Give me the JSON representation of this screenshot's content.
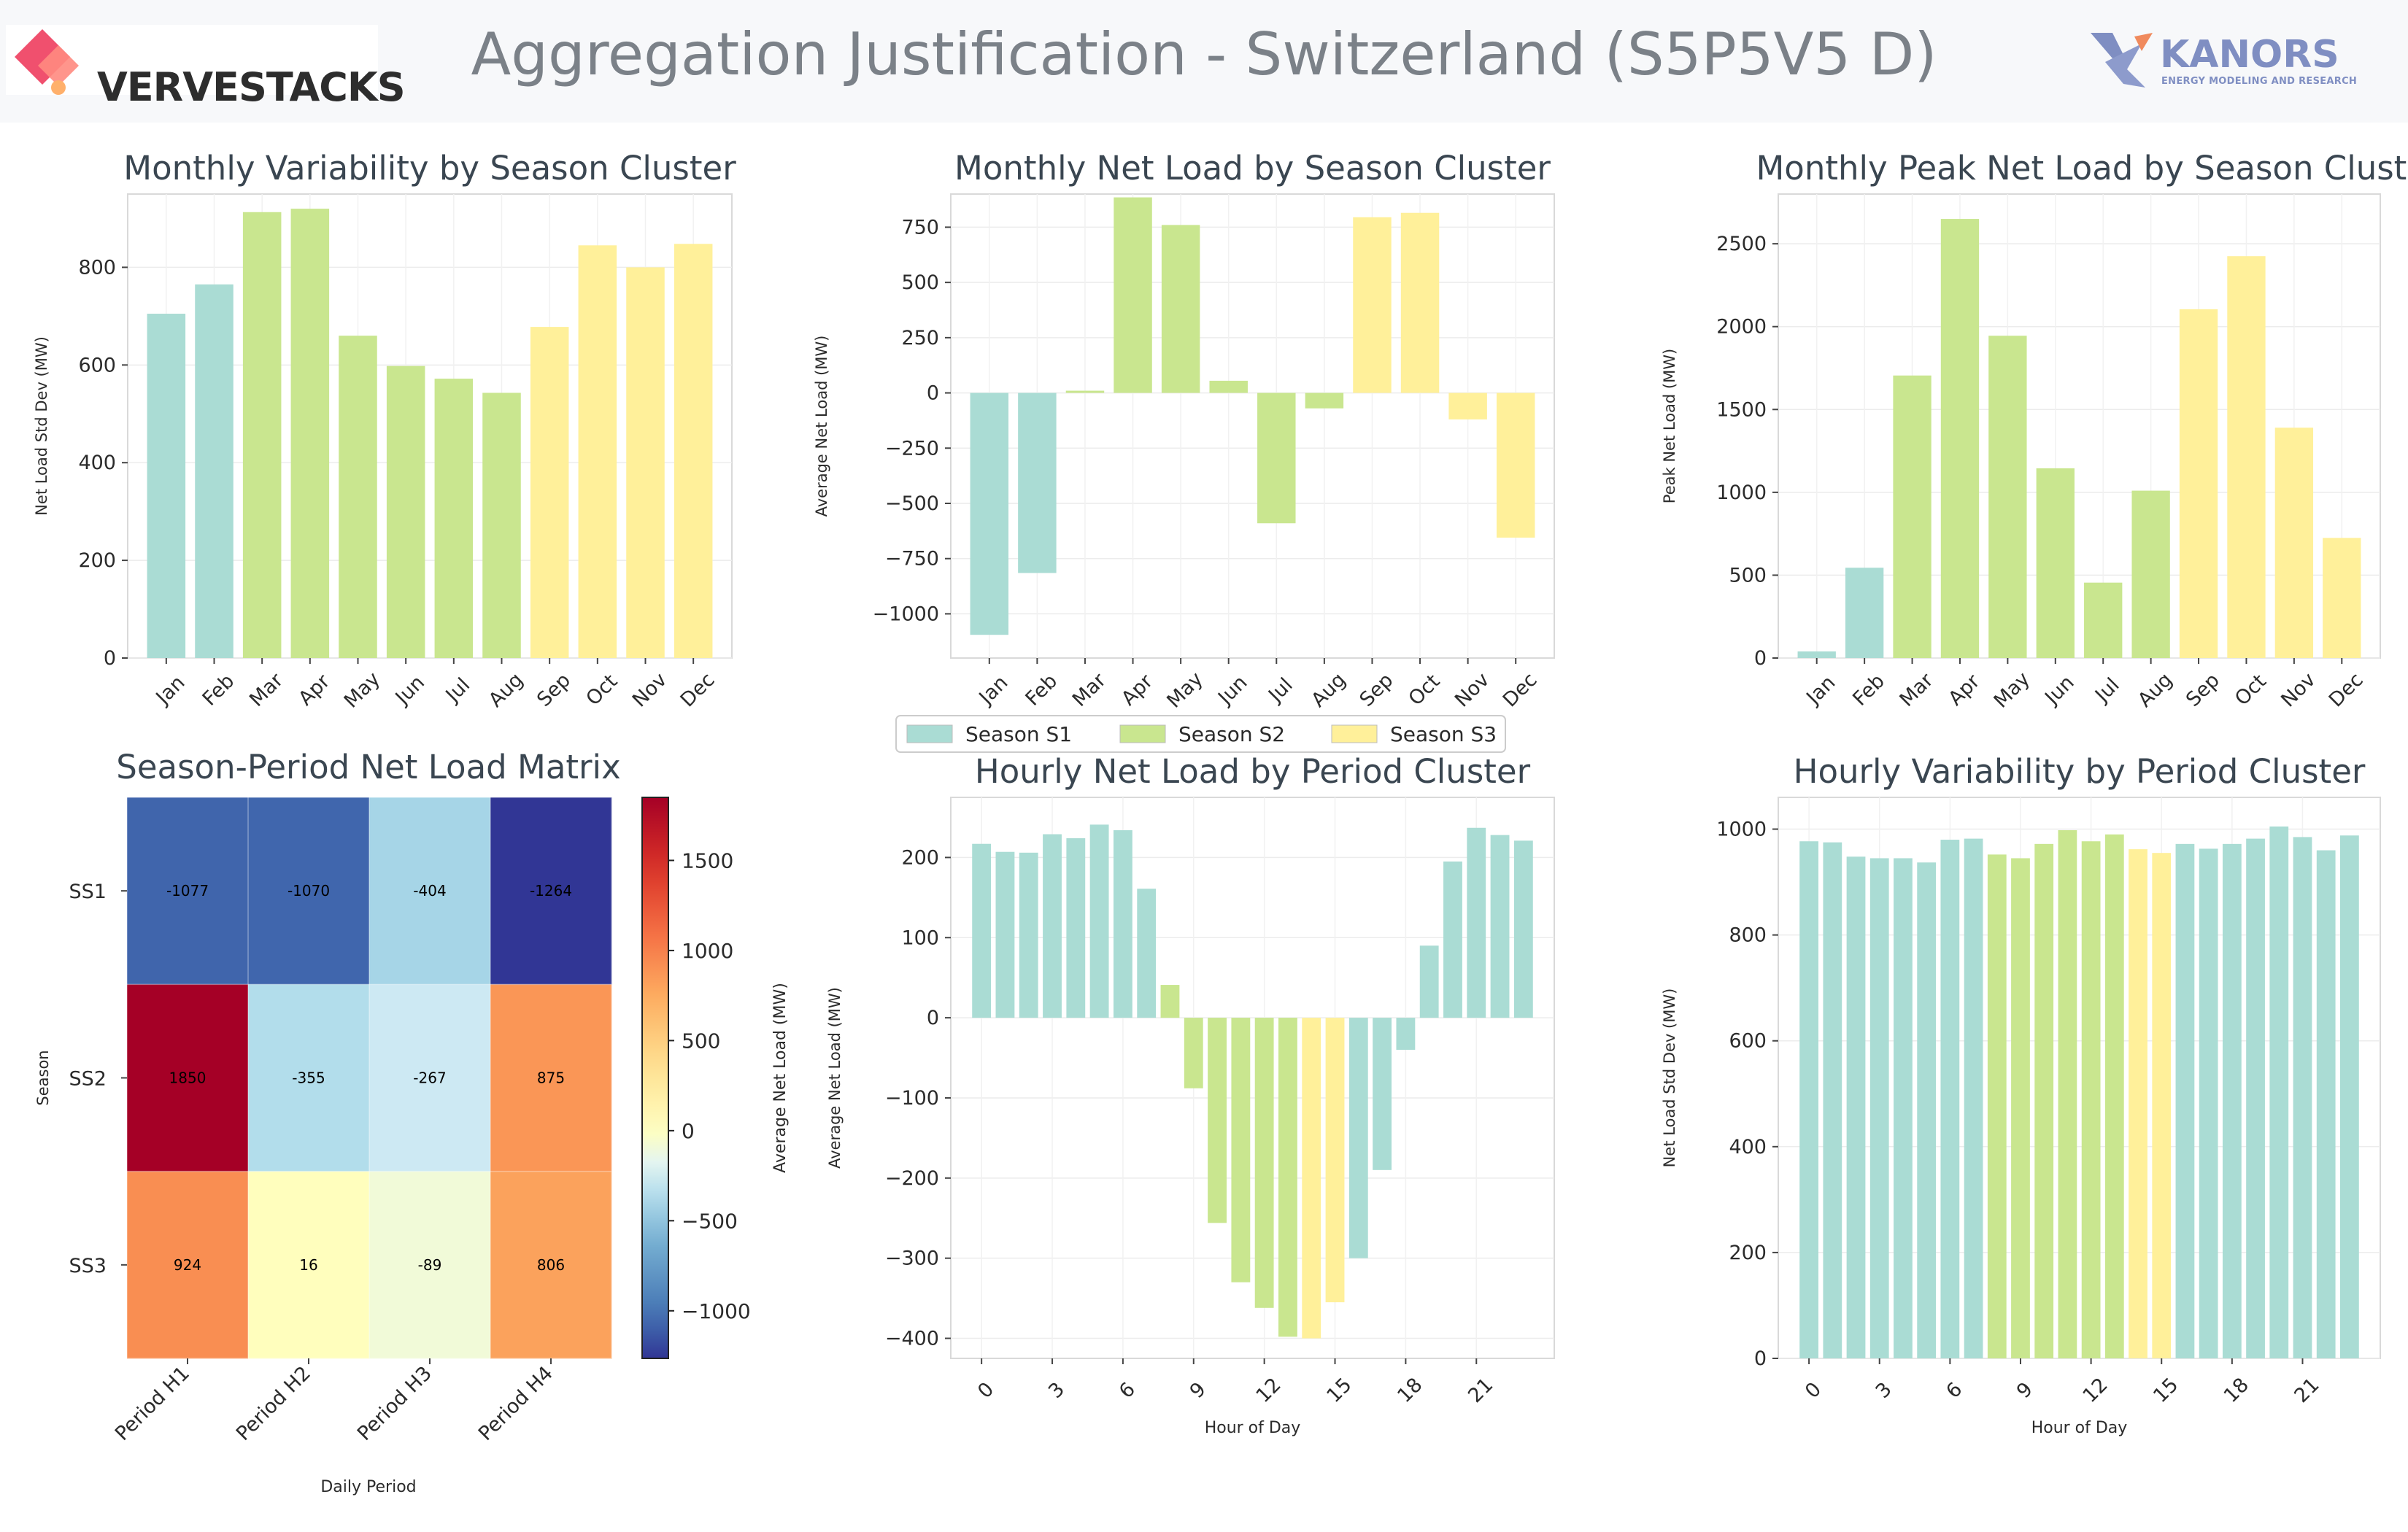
{
  "header": {
    "title": "Aggregation Justification - Switzerland (S5P5V5 D)",
    "brand_left": "VERVESTACKS",
    "brand_right": "KANORS",
    "brand_right_tagline": "ENERGY MODELING AND RESEARCH"
  },
  "colors": {
    "S1": "#aadcd4",
    "S2": "#c9e68f",
    "S3": "#fff09a"
  },
  "legend": [
    {
      "label": "Season S1",
      "color": "#aadcd4"
    },
    {
      "label": "Season S2",
      "color": "#c9e68f"
    },
    {
      "label": "Season S3",
      "color": "#fff09a"
    }
  ],
  "chart_data": [
    {
      "id": "monthly_variability",
      "type": "bar",
      "title": "Monthly Variability by Season Cluster",
      "ylabel": "Net Load Std Dev (MW)",
      "xlabel": "",
      "categories": [
        "Jan",
        "Feb",
        "Mar",
        "Apr",
        "May",
        "Jun",
        "Jul",
        "Aug",
        "Sep",
        "Oct",
        "Nov",
        "Dec"
      ],
      "values": [
        705,
        765,
        913,
        920,
        660,
        598,
        572,
        543,
        678,
        845,
        800,
        848
      ],
      "clusters": [
        "S1",
        "S1",
        "S2",
        "S2",
        "S2",
        "S2",
        "S2",
        "S2",
        "S3",
        "S3",
        "S3",
        "S3"
      ],
      "ylim": [
        0,
        950
      ],
      "yticks": [
        0,
        200,
        400,
        600,
        800
      ],
      "ytick_labels": [
        "0",
        "200",
        "400",
        "600",
        "800"
      ],
      "grid": true
    },
    {
      "id": "monthly_net_load",
      "type": "bar",
      "title": "Monthly Net Load by Season Cluster",
      "ylabel": "Average Net Load (MW)",
      "xlabel": "",
      "categories": [
        "Jan",
        "Feb",
        "Mar",
        "Apr",
        "May",
        "Jun",
        "Jul",
        "Aug",
        "Sep",
        "Oct",
        "Nov",
        "Dec"
      ],
      "values": [
        -1095,
        -815,
        10,
        885,
        760,
        55,
        -590,
        -70,
        795,
        815,
        -120,
        -655
      ],
      "clusters": [
        "S1",
        "S1",
        "S2",
        "S2",
        "S2",
        "S2",
        "S2",
        "S2",
        "S3",
        "S3",
        "S3",
        "S3"
      ],
      "ylim": [
        -1200,
        900
      ],
      "yticks": [
        -1000,
        -750,
        -500,
        -250,
        0,
        250,
        500,
        750
      ],
      "ytick_labels": [
        "−1000",
        "−750",
        "−500",
        "−250",
        "0",
        "250",
        "500",
        "750"
      ],
      "grid": true
    },
    {
      "id": "monthly_peak_net_load",
      "type": "bar",
      "title": "Monthly Peak Net Load by Season Cluster",
      "ylabel": "Peak Net Load (MW)",
      "xlabel": "",
      "categories": [
        "Jan",
        "Feb",
        "Mar",
        "Apr",
        "May",
        "Jun",
        "Jul",
        "Aug",
        "Sep",
        "Oct",
        "Nov",
        "Dec"
      ],
      "values": [
        40,
        545,
        1705,
        2650,
        1945,
        1145,
        455,
        1010,
        2105,
        2425,
        1390,
        725
      ],
      "clusters": [
        "S1",
        "S1",
        "S2",
        "S2",
        "S2",
        "S2",
        "S2",
        "S2",
        "S3",
        "S3",
        "S3",
        "S3"
      ],
      "ylim": [
        0,
        2800
      ],
      "yticks": [
        0,
        500,
        1000,
        1500,
        2000,
        2500
      ],
      "ytick_labels": [
        "0",
        "500",
        "1000",
        "1500",
        "2000",
        "2500"
      ],
      "grid": true
    },
    {
      "id": "season_period_matrix",
      "type": "heatmap",
      "title": "Season-Period Net Load Matrix",
      "xlabel": "Daily Period",
      "ylabel": "Season",
      "colorbar_label": "Average Net Load (MW)",
      "rows": [
        "SS1",
        "SS2",
        "SS3"
      ],
      "columns": [
        "Period H1",
        "Period H2",
        "Period H3",
        "Period H4"
      ],
      "values": [
        [
          -1077,
          -1070,
          -404,
          -1264
        ],
        [
          1850,
          -355,
          -267,
          875
        ],
        [
          924,
          16,
          -89,
          806
        ]
      ],
      "value_labels": [
        [
          "-1077",
          "-1070",
          "-404",
          "-1264"
        ],
        [
          "1850",
          "-355",
          "-267",
          "875"
        ],
        [
          "924",
          "16",
          "-89",
          "806"
        ]
      ],
      "color_range": [
        -1264,
        1850
      ],
      "colorbar_ticks": [
        -1000,
        -500,
        0,
        500,
        1000,
        1500
      ],
      "colorbar_tick_labels": [
        "−1000",
        "−500",
        "0",
        "500",
        "1000",
        "1500"
      ]
    },
    {
      "id": "hourly_net_load",
      "type": "bar",
      "title": "Hourly Net Load by Period Cluster",
      "xlabel": "Hour of Day",
      "ylabel": "Average Net Load (MW)",
      "x": [
        0,
        1,
        2,
        3,
        4,
        5,
        6,
        7,
        8,
        9,
        10,
        11,
        12,
        13,
        14,
        15,
        16,
        17,
        18,
        19,
        20,
        21,
        22,
        23
      ],
      "values": [
        217,
        207,
        206,
        229,
        224,
        241,
        234,
        161,
        41,
        -88,
        -256,
        -330,
        -362,
        -398,
        -400,
        -355,
        -300,
        -190,
        -40,
        90,
        195,
        237,
        228,
        221
      ],
      "clusters": [
        "S1",
        "S1",
        "S1",
        "S1",
        "S1",
        "S1",
        "S1",
        "S1",
        "S2",
        "S2",
        "S2",
        "S2",
        "S2",
        "S2",
        "S3",
        "S3",
        "S1",
        "S1",
        "S1",
        "S1",
        "S1",
        "S1",
        "S1",
        "S1"
      ],
      "ylim": [
        -425,
        275
      ],
      "yticks": [
        -400,
        -300,
        -200,
        -100,
        0,
        100,
        200
      ],
      "ytick_labels": [
        "−400",
        "−300",
        "−200",
        "−100",
        "0",
        "100",
        "200"
      ],
      "xticks": [
        0,
        3,
        6,
        9,
        12,
        15,
        18,
        21
      ],
      "xtick_labels": [
        "0",
        "3",
        "6",
        "9",
        "12",
        "15",
        "18",
        "21"
      ],
      "grid": true
    },
    {
      "id": "hourly_variability",
      "type": "bar",
      "title": "Hourly Variability by Period Cluster",
      "xlabel": "Hour of Day",
      "ylabel": "Net Load Std Dev (MW)",
      "x": [
        0,
        1,
        2,
        3,
        4,
        5,
        6,
        7,
        8,
        9,
        10,
        11,
        12,
        13,
        14,
        15,
        16,
        17,
        18,
        19,
        20,
        21,
        22,
        23
      ],
      "values": [
        977,
        975,
        948,
        945,
        945,
        937,
        980,
        982,
        952,
        945,
        972,
        998,
        977,
        990,
        962,
        955,
        972,
        963,
        972,
        982,
        1005,
        985,
        960,
        988
      ],
      "clusters": [
        "S1",
        "S1",
        "S1",
        "S1",
        "S1",
        "S1",
        "S1",
        "S1",
        "S2",
        "S2",
        "S2",
        "S2",
        "S2",
        "S2",
        "S3",
        "S3",
        "S1",
        "S1",
        "S1",
        "S1",
        "S1",
        "S1",
        "S1",
        "S1"
      ],
      "ylim": [
        0,
        1060
      ],
      "yticks": [
        0,
        200,
        400,
        600,
        800,
        1000
      ],
      "ytick_labels": [
        "0",
        "200",
        "400",
        "600",
        "800",
        "1000"
      ],
      "xticks": [
        0,
        3,
        6,
        9,
        12,
        15,
        18,
        21
      ],
      "xtick_labels": [
        "0",
        "3",
        "6",
        "9",
        "12",
        "15",
        "18",
        "21"
      ],
      "grid": true
    }
  ]
}
